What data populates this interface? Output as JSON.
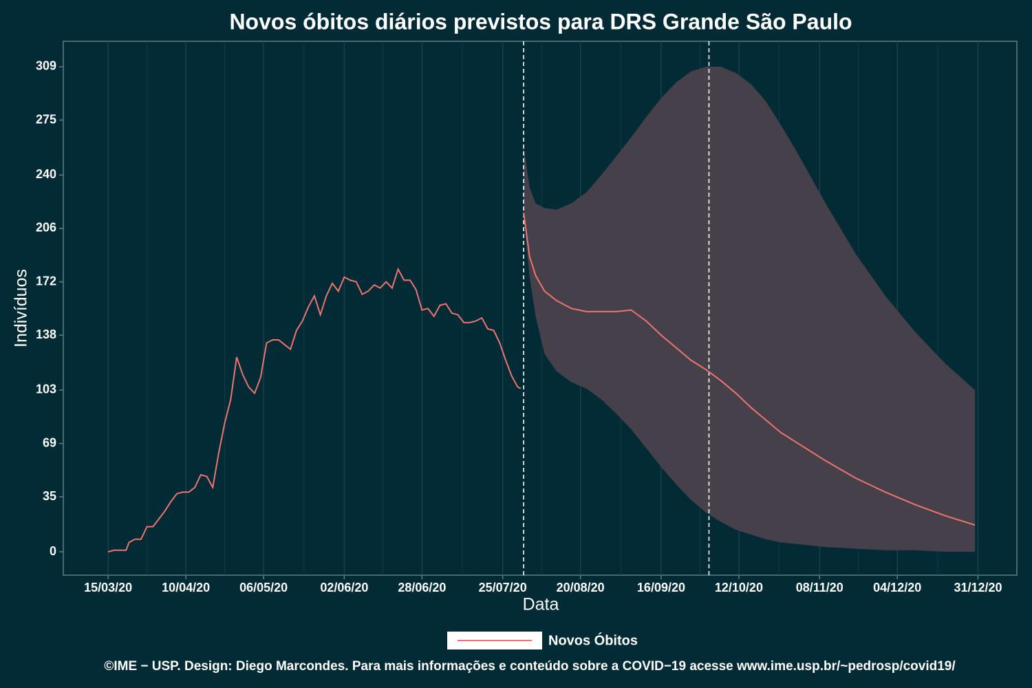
{
  "chart_data": {
    "type": "line",
    "title": "Novos óbitos diários previstos para DRS Grande São Paulo",
    "xlabel": "Data",
    "ylabel": "Indivíduos",
    "caption": "©IME − USP. Design: Diego Marcondes. Para mais informações e conteúdo sobre a COVID−19 acesse www.ime.usp.br/~pedrosp/covid19/",
    "xlim": [
      "29/02/20",
      "13/01/21"
    ],
    "ylim": [
      -14.9,
      325.2
    ],
    "xticks": [
      "15/03/20",
      "10/04/20",
      "06/05/20",
      "02/06/20",
      "28/06/20",
      "25/07/20",
      "20/08/20",
      "16/09/20",
      "12/10/20",
      "08/11/20",
      "04/12/20",
      "31/12/20"
    ],
    "yticks": [
      0,
      35,
      69,
      103,
      138,
      172,
      206,
      240,
      275,
      309
    ],
    "grid": true,
    "legend": "bottom",
    "vlines": [
      "01/08/20",
      "02/10/20"
    ],
    "series": [
      {
        "name": "Novos Óbitos",
        "color": "#f07470",
        "x": [
          "15/03/20",
          "17/03/20",
          "19/03/20",
          "21/03/20",
          "22/03/20",
          "24/03/20",
          "26/03/20",
          "28/03/20",
          "30/03/20",
          "01/04/20",
          "03/04/20",
          "05/04/20",
          "07/04/20",
          "09/04/20",
          "11/04/20",
          "13/04/20",
          "15/04/20",
          "17/04/20",
          "19/04/20",
          "21/04/20",
          "23/04/20",
          "25/04/20",
          "27/04/20",
          "29/04/20",
          "01/05/20",
          "03/05/20",
          "05/05/20",
          "07/05/20",
          "09/05/20",
          "11/05/20",
          "13/05/20",
          "15/05/20",
          "17/05/20",
          "19/05/20",
          "21/05/20",
          "23/05/20",
          "25/05/20",
          "27/05/20",
          "29/05/20",
          "31/05/20",
          "02/06/20",
          "04/06/20",
          "06/06/20",
          "08/06/20",
          "10/06/20",
          "12/06/20",
          "14/06/20",
          "16/06/20",
          "18/06/20",
          "20/06/20",
          "22/06/20",
          "24/06/20",
          "26/06/20",
          "28/06/20",
          "30/06/20",
          "02/07/20",
          "04/07/20",
          "06/07/20",
          "08/07/20",
          "10/07/20",
          "12/07/20",
          "14/07/20",
          "16/07/20",
          "18/07/20",
          "20/07/20",
          "22/07/20",
          "24/07/20",
          "26/07/20",
          "28/07/20",
          "30/07/20",
          "31/07/20"
        ],
        "values": [
          0,
          1,
          1,
          1,
          6,
          8,
          8,
          16,
          16,
          21,
          26,
          32,
          37,
          38,
          38,
          41,
          49,
          48,
          41,
          63,
          82,
          97,
          124,
          113,
          105,
          101,
          111,
          133,
          135,
          135,
          132,
          129,
          141,
          147,
          156,
          163,
          151,
          163,
          171,
          166,
          175,
          173,
          172,
          164,
          166,
          170,
          168,
          172,
          168,
          180,
          173,
          173,
          167,
          154,
          155,
          150,
          157,
          158,
          152,
          151,
          146,
          146,
          147,
          149,
          142,
          141,
          133,
          122,
          112,
          105,
          104
        ]
      }
    ],
    "forecast": {
      "x": [
        "01/08/20",
        "03/08/20",
        "05/08/20",
        "08/08/20",
        "12/08/20",
        "17/08/20",
        "22/08/20",
        "27/08/20",
        "01/09/20",
        "06/09/20",
        "11/09/20",
        "16/09/20",
        "21/09/20",
        "26/09/20",
        "01/10/20",
        "06/10/20",
        "11/10/20",
        "16/10/20",
        "21/10/20",
        "26/10/20",
        "31/10/20",
        "10/11/20",
        "20/11/20",
        "30/11/20",
        "10/12/20",
        "20/12/20",
        "30/12/20"
      ],
      "values": [
        216,
        188,
        176,
        166,
        160,
        155,
        153,
        153,
        153,
        154,
        147,
        138,
        130,
        122,
        116,
        109,
        101,
        92,
        84,
        76,
        70,
        58,
        47,
        38,
        30,
        23,
        17
      ],
      "lower": [
        213,
        175,
        150,
        126,
        115,
        108,
        104,
        97,
        88,
        78,
        66,
        54,
        43,
        33,
        25,
        19,
        14,
        11,
        8,
        6,
        5,
        3,
        2,
        1,
        1,
        0,
        0
      ],
      "upper": [
        259,
        232,
        222,
        219,
        218,
        222,
        229,
        240,
        252,
        264,
        277,
        289,
        299,
        306,
        309,
        309,
        305,
        298,
        287,
        272,
        256,
        222,
        190,
        163,
        140,
        120,
        103
      ]
    }
  }
}
